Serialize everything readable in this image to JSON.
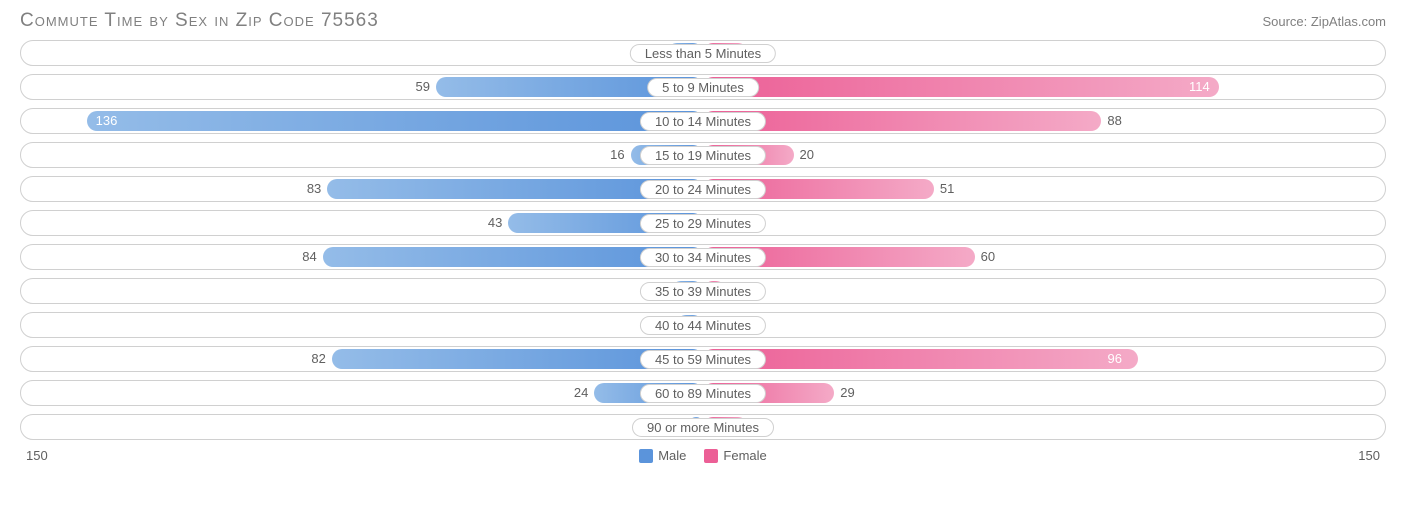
{
  "title": "Commute Time by Sex in Zip Code 75563",
  "source": "Source: ZipAtlas.com",
  "axis_max": 150,
  "axis_left_label": "150",
  "axis_right_label": "150",
  "colors": {
    "male_light": "#94bce8",
    "male_dark": "#5b94db",
    "female_dark": "#ec5f96",
    "female_light": "#f4aac7",
    "text": "#606060",
    "border": "#d0d0d0",
    "title": "#808080"
  },
  "legend": {
    "male": "Male",
    "female": "Female"
  },
  "rows": [
    {
      "category": "Less than 5 Minutes",
      "male": 8,
      "female": 10,
      "male_inside": false,
      "female_inside": false
    },
    {
      "category": "5 to 9 Minutes",
      "male": 59,
      "female": 114,
      "male_inside": false,
      "female_inside": true
    },
    {
      "category": "10 to 14 Minutes",
      "male": 136,
      "female": 88,
      "male_inside": true,
      "female_inside": false
    },
    {
      "category": "15 to 19 Minutes",
      "male": 16,
      "female": 20,
      "male_inside": false,
      "female_inside": false
    },
    {
      "category": "20 to 24 Minutes",
      "male": 83,
      "female": 51,
      "male_inside": false,
      "female_inside": false
    },
    {
      "category": "25 to 29 Minutes",
      "male": 43,
      "female": 0,
      "male_inside": false,
      "female_inside": false
    },
    {
      "category": "30 to 34 Minutes",
      "male": 84,
      "female": 60,
      "male_inside": false,
      "female_inside": false
    },
    {
      "category": "35 to 39 Minutes",
      "male": 7,
      "female": 5,
      "male_inside": false,
      "female_inside": false
    },
    {
      "category": "40 to 44 Minutes",
      "male": 6,
      "female": 0,
      "male_inside": false,
      "female_inside": false
    },
    {
      "category": "45 to 59 Minutes",
      "male": 82,
      "female": 96,
      "male_inside": false,
      "female_inside": true
    },
    {
      "category": "60 to 89 Minutes",
      "male": 24,
      "female": 29,
      "male_inside": false,
      "female_inside": false
    },
    {
      "category": "90 or more Minutes",
      "male": 3,
      "female": 10,
      "male_inside": false,
      "female_inside": false
    }
  ]
}
